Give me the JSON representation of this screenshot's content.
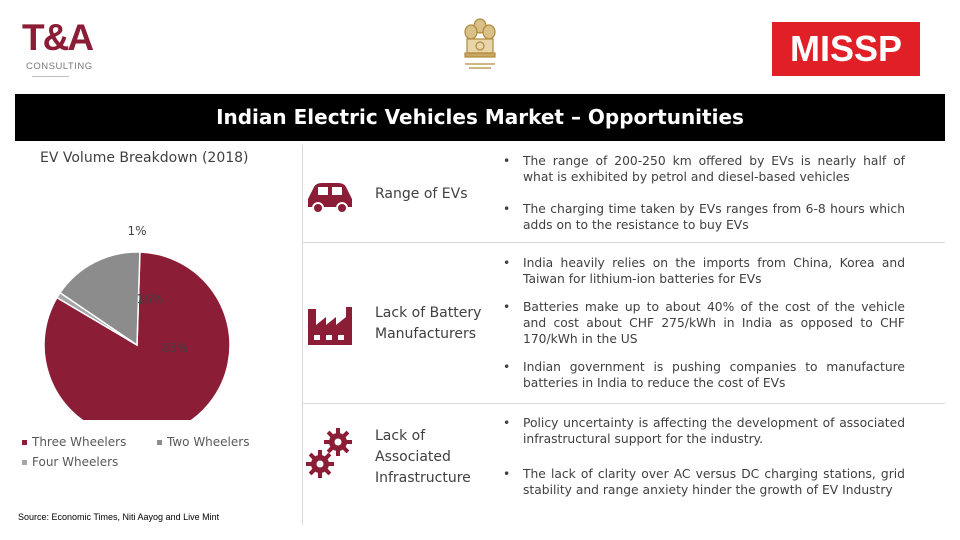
{
  "header": {
    "ta_logo_main": "T&A",
    "ta_logo_sub": "CONSULTING",
    "emblem_icon": "india-emblem-icon",
    "missp_logo": "MISSP",
    "title": "Indian Electric Vehicles Market – Opportunities"
  },
  "chart_data": {
    "type": "pie",
    "title": "EV Volume Breakdown (2018)",
    "series": [
      {
        "name": "Three Wheelers",
        "value": 83,
        "label": "83%",
        "color": "#8b1d36"
      },
      {
        "name": "Four Wheelers",
        "value": 1,
        "label": "1%",
        "color": "#a6a6a6"
      },
      {
        "name": "Two Wheelers",
        "value": 16,
        "label": "16%",
        "color": "#8c8c8c"
      }
    ],
    "legend_position": "bottom"
  },
  "source": "Source: Economic Times, Niti Aayog and Live Mint",
  "sections": [
    {
      "label": "Range of EVs",
      "icon": "car-icon",
      "bullets": [
        "The range of 200-250 km offered by EVs is nearly half of what is exhibited by petrol and diesel-based vehicles",
        "The charging time taken by EVs ranges from 6-8 hours which adds on to the resistance to buy EVs"
      ]
    },
    {
      "label_lines": [
        "Lack of Battery",
        "Manufacturers"
      ],
      "icon": "factory-icon",
      "bullets": [
        "India heavily relies on the imports from China, Korea and Taiwan for lithium-ion batteries for EVs",
        "Batteries make up to about 40% of the cost of the vehicle and cost about CHF 275/kWh in India as opposed to CHF 170/kWh in the US",
        "Indian government is pushing companies to manufacture batteries in India to reduce the cost of EVs"
      ]
    },
    {
      "label_lines": [
        "Lack of",
        "Associated",
        "Infrastructure"
      ],
      "icon": "gears-icon",
      "bullets": [
        "Policy uncertainty is affecting the development of associated infrastructural support for the industry.",
        "The lack of clarity over AC versus DC charging stations, grid stability and range anxiety hinder the growth of EV Industry"
      ]
    }
  ],
  "bullet_char": "•",
  "colors": {
    "accent": "#8b1d36",
    "title_bar": "#000000",
    "missp_red": "#e11f26"
  }
}
